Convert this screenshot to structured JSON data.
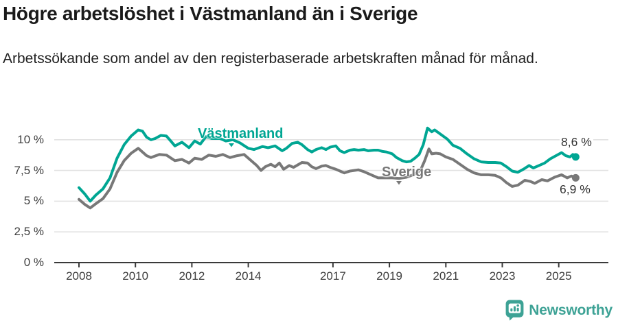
{
  "header": {
    "title": "Högre arbetslöshet i Västmanland än i Sverige",
    "subtitle": "Arbetssökande som andel av den registerbaserade arbetskraften månad för månad."
  },
  "chart_data": {
    "type": "line",
    "title": "Högre arbetslöshet i Västmanland än i Sverige",
    "ylabel": "",
    "xlabel": "",
    "unit": "%",
    "grid": true,
    "legend_position": "inline-labels",
    "x_axis": {
      "range": [
        2007.8,
        2026.0
      ],
      "ticks": [
        2008,
        2010,
        2012,
        2014,
        2017,
        2019,
        2021,
        2023,
        2025
      ],
      "tick_labels": [
        "2008",
        "2010",
        "2012",
        "2014",
        "2017",
        "2019",
        "2021",
        "2023",
        "2025"
      ]
    },
    "y_axis": {
      "range": [
        0,
        11.6
      ],
      "ticks": [
        0,
        2.5,
        5,
        7.5,
        10
      ],
      "tick_labels": [
        "0 %",
        "2,5 %",
        "5 %",
        "7,5 %",
        "10 %"
      ]
    },
    "series": [
      {
        "name": "Västmanland",
        "color": "#00a693",
        "end_value": 8.6,
        "end_label": "8,6 %",
        "points": [
          [
            2008.0,
            6.1
          ],
          [
            2008.2,
            5.6
          ],
          [
            2008.4,
            5.0
          ],
          [
            2008.6,
            5.5
          ],
          [
            2008.85,
            6.0
          ],
          [
            2009.1,
            6.9
          ],
          [
            2009.35,
            8.5
          ],
          [
            2009.6,
            9.6
          ],
          [
            2009.85,
            10.3
          ],
          [
            2010.1,
            10.8
          ],
          [
            2010.25,
            10.7
          ],
          [
            2010.4,
            10.2
          ],
          [
            2010.55,
            10.0
          ],
          [
            2010.7,
            10.1
          ],
          [
            2010.9,
            10.35
          ],
          [
            2011.1,
            10.3
          ],
          [
            2011.25,
            9.9
          ],
          [
            2011.4,
            9.5
          ],
          [
            2011.65,
            9.8
          ],
          [
            2011.9,
            9.35
          ],
          [
            2012.1,
            9.9
          ],
          [
            2012.3,
            9.65
          ],
          [
            2012.5,
            10.25
          ],
          [
            2012.7,
            10.1
          ],
          [
            2013.0,
            10.1
          ],
          [
            2013.2,
            9.9
          ],
          [
            2013.45,
            10.0
          ],
          [
            2013.7,
            9.75
          ],
          [
            2014.0,
            9.3
          ],
          [
            2014.2,
            9.2
          ],
          [
            2014.5,
            9.45
          ],
          [
            2014.7,
            9.35
          ],
          [
            2014.95,
            9.5
          ],
          [
            2015.2,
            9.1
          ],
          [
            2015.35,
            9.3
          ],
          [
            2015.55,
            9.7
          ],
          [
            2015.75,
            9.8
          ],
          [
            2015.9,
            9.6
          ],
          [
            2016.1,
            9.2
          ],
          [
            2016.25,
            9.0
          ],
          [
            2016.4,
            9.2
          ],
          [
            2016.6,
            9.35
          ],
          [
            2016.75,
            9.2
          ],
          [
            2016.9,
            9.4
          ],
          [
            2017.1,
            9.5
          ],
          [
            2017.25,
            9.1
          ],
          [
            2017.4,
            8.95
          ],
          [
            2017.6,
            9.15
          ],
          [
            2017.75,
            9.2
          ],
          [
            2017.9,
            9.15
          ],
          [
            2018.1,
            9.2
          ],
          [
            2018.25,
            9.1
          ],
          [
            2018.45,
            9.15
          ],
          [
            2018.6,
            9.15
          ],
          [
            2018.75,
            9.05
          ],
          [
            2018.9,
            9.0
          ],
          [
            2019.1,
            8.85
          ],
          [
            2019.25,
            8.55
          ],
          [
            2019.45,
            8.3
          ],
          [
            2019.6,
            8.2
          ],
          [
            2019.75,
            8.25
          ],
          [
            2019.9,
            8.5
          ],
          [
            2020.05,
            8.8
          ],
          [
            2020.2,
            9.6
          ],
          [
            2020.35,
            10.95
          ],
          [
            2020.5,
            10.65
          ],
          [
            2020.6,
            10.8
          ],
          [
            2020.75,
            10.55
          ],
          [
            2020.9,
            10.3
          ],
          [
            2021.05,
            10.05
          ],
          [
            2021.25,
            9.55
          ],
          [
            2021.5,
            9.3
          ],
          [
            2021.75,
            8.85
          ],
          [
            2022.0,
            8.45
          ],
          [
            2022.25,
            8.2
          ],
          [
            2022.5,
            8.15
          ],
          [
            2022.75,
            8.15
          ],
          [
            2022.95,
            8.1
          ],
          [
            2023.15,
            7.8
          ],
          [
            2023.35,
            7.45
          ],
          [
            2023.55,
            7.35
          ],
          [
            2023.75,
            7.6
          ],
          [
            2023.95,
            7.9
          ],
          [
            2024.1,
            7.7
          ],
          [
            2024.3,
            7.9
          ],
          [
            2024.5,
            8.1
          ],
          [
            2024.7,
            8.45
          ],
          [
            2024.9,
            8.7
          ],
          [
            2025.1,
            8.95
          ],
          [
            2025.25,
            8.7
          ],
          [
            2025.4,
            8.6
          ],
          [
            2025.5,
            8.8
          ],
          [
            2025.6,
            8.6
          ]
        ]
      },
      {
        "name": "Sverige",
        "color": "#787878",
        "end_value": 6.9,
        "end_label": "6,9 %",
        "points": [
          [
            2008.0,
            5.15
          ],
          [
            2008.2,
            4.75
          ],
          [
            2008.4,
            4.45
          ],
          [
            2008.6,
            4.8
          ],
          [
            2008.85,
            5.2
          ],
          [
            2009.1,
            6.0
          ],
          [
            2009.35,
            7.35
          ],
          [
            2009.6,
            8.3
          ],
          [
            2009.85,
            8.9
          ],
          [
            2010.1,
            9.3
          ],
          [
            2010.4,
            8.7
          ],
          [
            2010.55,
            8.55
          ],
          [
            2010.85,
            8.8
          ],
          [
            2011.1,
            8.75
          ],
          [
            2011.4,
            8.3
          ],
          [
            2011.65,
            8.4
          ],
          [
            2011.9,
            8.1
          ],
          [
            2012.1,
            8.5
          ],
          [
            2012.35,
            8.4
          ],
          [
            2012.6,
            8.75
          ],
          [
            2012.85,
            8.65
          ],
          [
            2013.1,
            8.8
          ],
          [
            2013.35,
            8.55
          ],
          [
            2013.6,
            8.7
          ],
          [
            2013.85,
            8.8
          ],
          [
            2014.1,
            8.3
          ],
          [
            2014.3,
            7.9
          ],
          [
            2014.45,
            7.5
          ],
          [
            2014.6,
            7.8
          ],
          [
            2014.8,
            8.0
          ],
          [
            2014.95,
            7.8
          ],
          [
            2015.1,
            8.1
          ],
          [
            2015.25,
            7.6
          ],
          [
            2015.45,
            7.9
          ],
          [
            2015.6,
            7.75
          ],
          [
            2015.9,
            8.15
          ],
          [
            2016.1,
            8.1
          ],
          [
            2016.25,
            7.8
          ],
          [
            2016.4,
            7.65
          ],
          [
            2016.6,
            7.85
          ],
          [
            2016.75,
            7.9
          ],
          [
            2016.9,
            7.75
          ],
          [
            2017.1,
            7.6
          ],
          [
            2017.25,
            7.45
          ],
          [
            2017.4,
            7.3
          ],
          [
            2017.6,
            7.45
          ],
          [
            2017.75,
            7.5
          ],
          [
            2017.9,
            7.55
          ],
          [
            2018.1,
            7.4
          ],
          [
            2018.4,
            7.1
          ],
          [
            2018.6,
            6.9
          ],
          [
            2018.85,
            6.9
          ],
          [
            2019.1,
            6.9
          ],
          [
            2019.35,
            6.85
          ],
          [
            2019.6,
            6.95
          ],
          [
            2019.85,
            7.15
          ],
          [
            2020.1,
            7.5
          ],
          [
            2020.25,
            8.3
          ],
          [
            2020.4,
            9.25
          ],
          [
            2020.5,
            8.85
          ],
          [
            2020.65,
            8.9
          ],
          [
            2020.8,
            8.85
          ],
          [
            2021.0,
            8.6
          ],
          [
            2021.25,
            8.4
          ],
          [
            2021.5,
            8.0
          ],
          [
            2021.75,
            7.6
          ],
          [
            2022.0,
            7.3
          ],
          [
            2022.25,
            7.15
          ],
          [
            2022.5,
            7.15
          ],
          [
            2022.75,
            7.1
          ],
          [
            2022.95,
            6.9
          ],
          [
            2023.15,
            6.5
          ],
          [
            2023.35,
            6.2
          ],
          [
            2023.55,
            6.3
          ],
          [
            2023.8,
            6.7
          ],
          [
            2024.0,
            6.6
          ],
          [
            2024.15,
            6.45
          ],
          [
            2024.4,
            6.75
          ],
          [
            2024.6,
            6.65
          ],
          [
            2024.85,
            6.95
          ],
          [
            2025.1,
            7.15
          ],
          [
            2025.3,
            6.9
          ],
          [
            2025.45,
            7.05
          ],
          [
            2025.6,
            6.9
          ]
        ]
      }
    ]
  },
  "footer": {
    "brand": "Newsworthy",
    "brand_color": "#3da295"
  }
}
